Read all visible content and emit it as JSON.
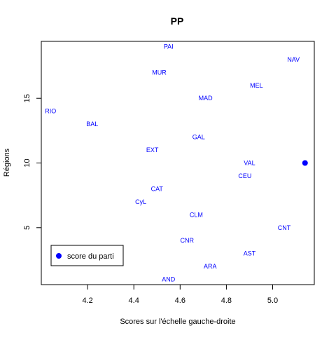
{
  "chart_data": {
    "type": "scatter",
    "title": "PP",
    "xlabel": "Scores sur l'échelle gauche-droite",
    "ylabel": "Régions",
    "xlim": [
      4.0,
      5.18
    ],
    "ylim": [
      0.6,
      19.4
    ],
    "x_ticks": [
      4.2,
      4.4,
      4.6,
      4.8,
      5.0
    ],
    "x_tick_labels": [
      "4.2",
      "4.4",
      "4.6",
      "4.8",
      "5.0"
    ],
    "y_ticks": [
      5,
      10,
      15
    ],
    "y_tick_labels": [
      "5",
      "10",
      "15"
    ],
    "label_color": "#0000ff",
    "point_color": "#0000ff",
    "regions": [
      {
        "label": "AND",
        "x": 4.55,
        "y": 1
      },
      {
        "label": "ARA",
        "x": 4.73,
        "y": 2
      },
      {
        "label": "AST",
        "x": 4.9,
        "y": 3
      },
      {
        "label": "CNR",
        "x": 4.63,
        "y": 4
      },
      {
        "label": "CNT",
        "x": 5.05,
        "y": 5
      },
      {
        "label": "CLM",
        "x": 4.67,
        "y": 6
      },
      {
        "label": "CyL",
        "x": 4.43,
        "y": 7
      },
      {
        "label": "CAT",
        "x": 4.5,
        "y": 8
      },
      {
        "label": "CEU",
        "x": 4.88,
        "y": 9
      },
      {
        "label": "VAL",
        "x": 4.9,
        "y": 10
      },
      {
        "label": "EXT",
        "x": 4.48,
        "y": 11
      },
      {
        "label": "GAL",
        "x": 4.68,
        "y": 12
      },
      {
        "label": "BAL",
        "x": 4.22,
        "y": 13
      },
      {
        "label": "RIO",
        "x": 4.04,
        "y": 14
      },
      {
        "label": "MAD",
        "x": 4.71,
        "y": 15
      },
      {
        "label": "MEL",
        "x": 4.93,
        "y": 16
      },
      {
        "label": "MUR",
        "x": 4.51,
        "y": 17
      },
      {
        "label": "NAV",
        "x": 5.09,
        "y": 18
      },
      {
        "label": "PAI",
        "x": 4.55,
        "y": 19
      }
    ],
    "party_score": {
      "x": 5.14,
      "y": 10
    },
    "legend": {
      "label": "score du parti",
      "position": "bottom-left"
    }
  }
}
